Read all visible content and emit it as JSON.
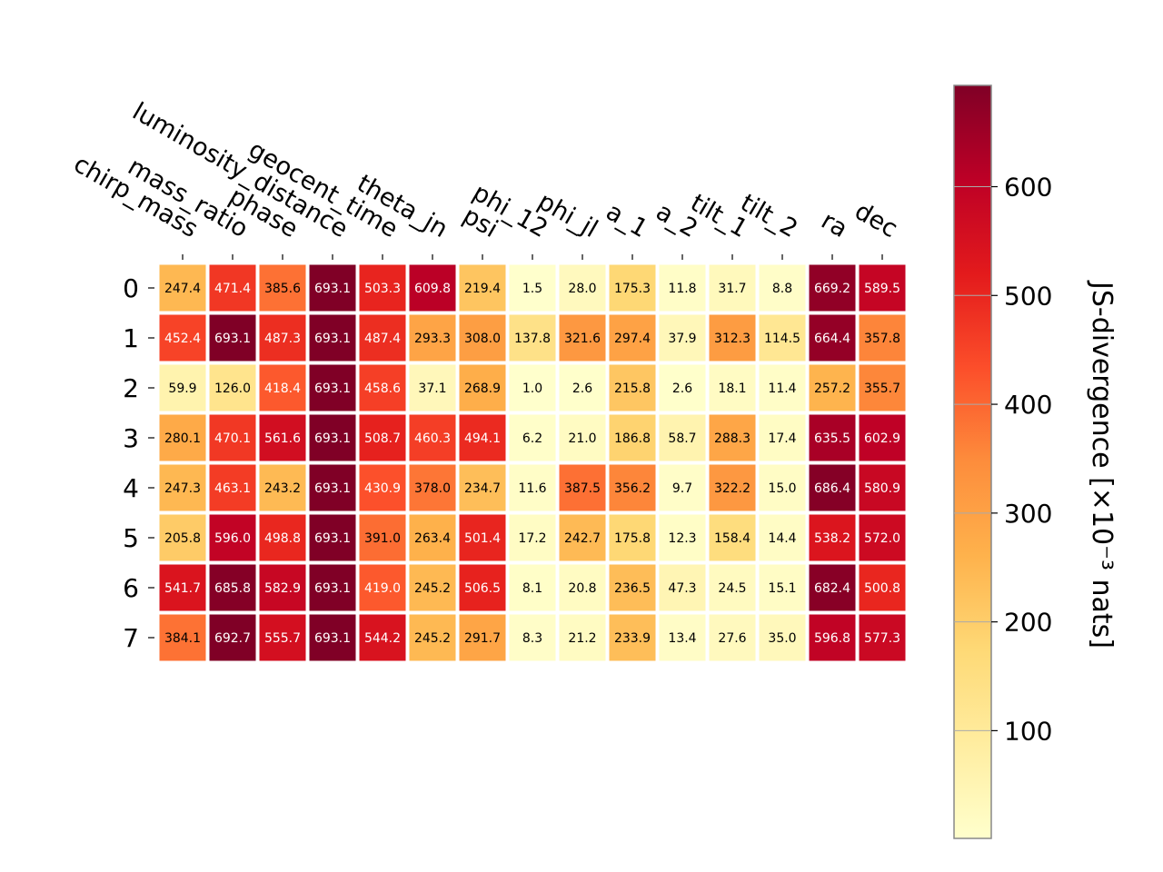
{
  "chart_data": {
    "type": "heatmap",
    "title": "",
    "columns": [
      "chirp_mass",
      "mass_ratio",
      "phase",
      "luminosity_distance",
      "geocent_time",
      "theta_jn",
      "psi",
      "phi_12",
      "phi_jl",
      "a_1",
      "a_2",
      "tilt_1",
      "tilt_2",
      "ra",
      "dec"
    ],
    "rows": [
      "0",
      "1",
      "2",
      "3",
      "4",
      "5",
      "6",
      "7"
    ],
    "values": [
      [
        247.4,
        471.4,
        385.6,
        693.1,
        503.3,
        609.8,
        219.4,
        1.5,
        28.0,
        175.3,
        11.8,
        31.7,
        8.8,
        669.2,
        589.5
      ],
      [
        452.4,
        693.1,
        487.3,
        693.1,
        487.4,
        293.3,
        308.0,
        137.8,
        321.6,
        297.4,
        37.9,
        312.3,
        114.5,
        664.4,
        357.8
      ],
      [
        59.9,
        126.0,
        418.4,
        693.1,
        458.6,
        37.1,
        268.9,
        1.0,
        2.6,
        215.8,
        2.6,
        18.1,
        11.4,
        257.2,
        355.7
      ],
      [
        280.1,
        470.1,
        561.6,
        693.1,
        508.7,
        460.3,
        494.1,
        6.2,
        21.0,
        186.8,
        58.7,
        288.3,
        17.4,
        635.5,
        602.9
      ],
      [
        247.3,
        463.1,
        243.2,
        693.1,
        430.9,
        378.0,
        234.7,
        11.6,
        387.5,
        356.2,
        9.7,
        322.2,
        15.0,
        686.4,
        580.9
      ],
      [
        205.8,
        596.0,
        498.8,
        693.1,
        391.0,
        263.4,
        501.4,
        17.2,
        242.7,
        175.8,
        12.3,
        158.4,
        14.4,
        538.2,
        572.0
      ],
      [
        541.7,
        685.8,
        582.9,
        693.1,
        419.0,
        245.2,
        506.5,
        8.1,
        20.8,
        236.5,
        47.3,
        24.5,
        15.1,
        682.4,
        500.8
      ],
      [
        384.1,
        692.7,
        555.7,
        693.1,
        544.2,
        245.2,
        291.7,
        8.3,
        21.2,
        233.9,
        13.4,
        27.6,
        35.0,
        596.8,
        577.3
      ]
    ],
    "colorbar": {
      "label": "JS-divergence [×10⁻³ nats]",
      "ticks": [
        "100",
        "200",
        "300",
        "400",
        "500",
        "600"
      ],
      "min": 1.0,
      "max": 693.1,
      "colormap": "YlOrRd",
      "colors": [
        "#ffffcc",
        "#ffeda0",
        "#fed976",
        "#feb24c",
        "#fd8d3c",
        "#fc4e2a",
        "#e31a1c",
        "#bd0026",
        "#800026"
      ]
    }
  }
}
